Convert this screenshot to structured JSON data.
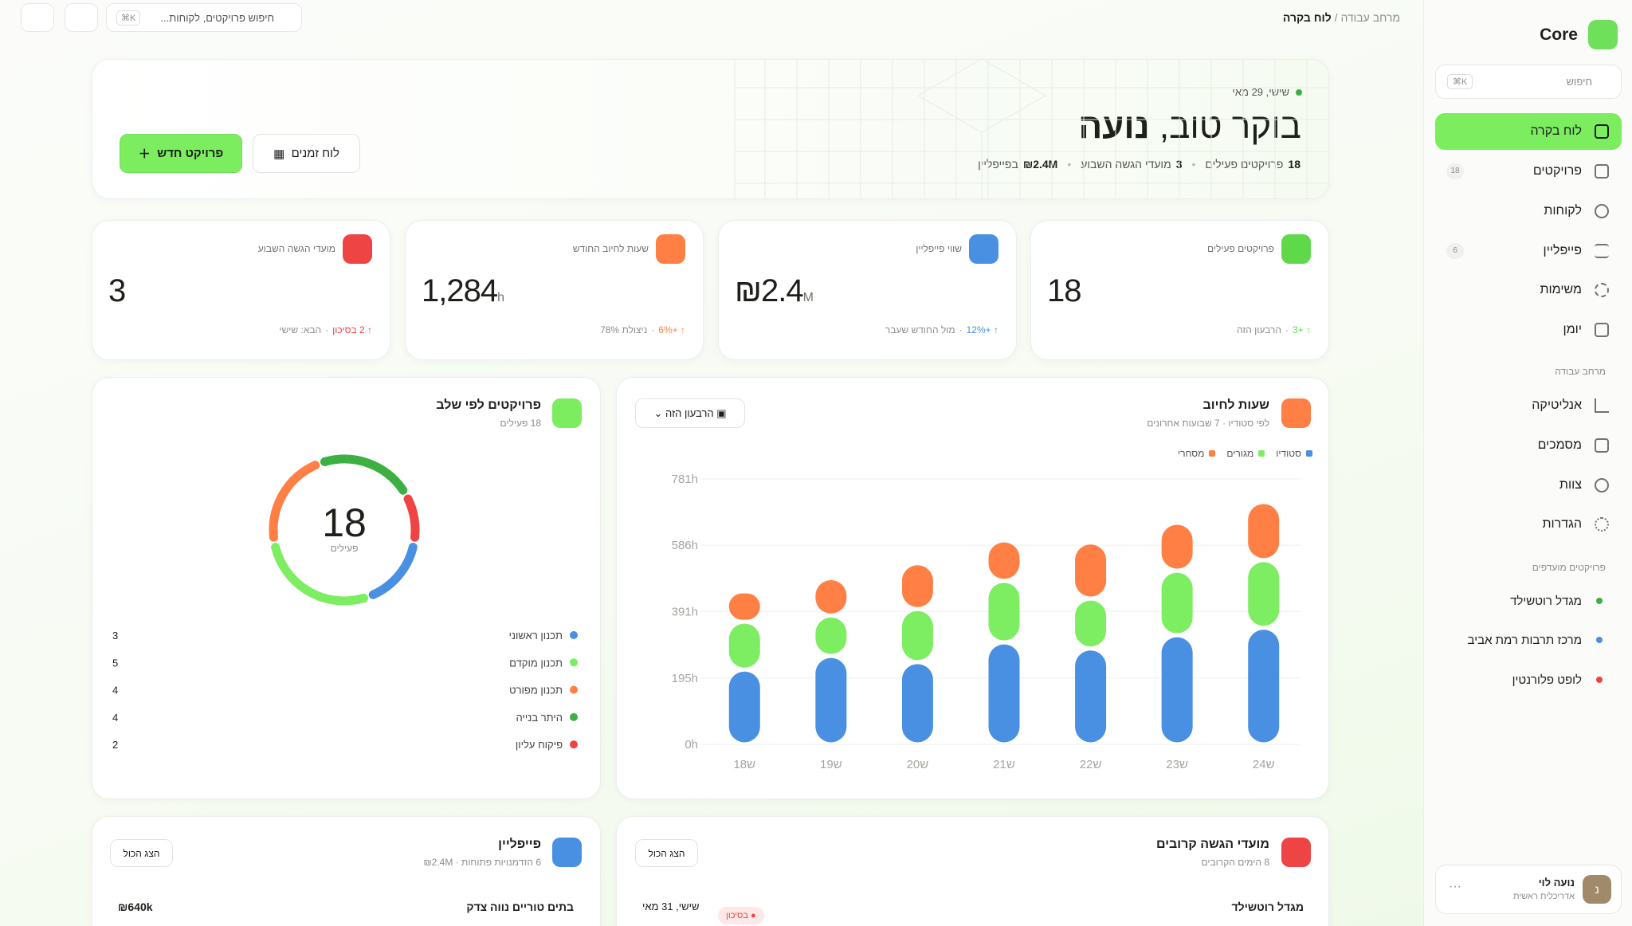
{
  "sidebar": {
    "brand": "Core",
    "search": {
      "placeholder": "חיפוש",
      "shortcut": "⌘K"
    },
    "nav": [
      {
        "label": "לוח בקרה"
      },
      {
        "label": "פרויקטים",
        "badge": "18"
      },
      {
        "label": "לקוחות"
      },
      {
        "label": "פייפליין",
        "badge": "6"
      },
      {
        "label": "משימות"
      },
      {
        "label": "יומן"
      }
    ],
    "workspace_title": "מרחב עבודה",
    "workspace": [
      "אנליטיקה",
      "מסמכים",
      "צוות",
      "הגדרות"
    ],
    "favorites_title": "פרויקטים מועדפים",
    "favorites": [
      {
        "label": "מגדל רוטשילד",
        "color": "#3cb043"
      },
      {
        "label": "מרכז תרבות רמת אביב",
        "color": "#4a90e2"
      },
      {
        "label": "לופט פלורנטין",
        "color": "#ef4444"
      }
    ],
    "user": {
      "name": "נועה לוי",
      "role": "אדריכלית ראשית",
      "initial": "נ"
    }
  },
  "topbar": {
    "breadcrumb": [
      "מרחב עבודה",
      "לוח בקרה"
    ],
    "search": {
      "placeholder": "חיפוש פרויקטים, לקוחות...",
      "shortcut": "⌘K"
    }
  },
  "hero": {
    "date": "שישי, 29 מאי",
    "greeting": "בוקר טוב,",
    "name": "נועה",
    "stats": [
      {
        "value": "18",
        "label": "פרויקטים פעילים"
      },
      {
        "value": "3",
        "label": "מועדי הגשה השבוע"
      },
      {
        "value": "₪2.4M",
        "label": "בפייפליין"
      }
    ],
    "buttons": [
      "פרויקט חדש",
      "לוח זמנים"
    ]
  },
  "kpis": [
    {
      "label": "פרויקטים פעילים",
      "value": "18",
      "unit": "",
      "change": "+3",
      "note": "הרבעון הזה",
      "color": "#5fd94a"
    },
    {
      "label": "שווי פייפליין",
      "value": "₪2.4",
      "unit": "M",
      "change": "+12%",
      "note": "מול החודש שעבר",
      "color": "#4a90e2"
    },
    {
      "label": "שעות לחיוב החודש",
      "value": "1,284",
      "unit": "h",
      "change": "+6%",
      "note": "ניצולת 78%",
      "color": "#ff7f45"
    },
    {
      "label": "מועדי הגשה השבוע",
      "value": "3",
      "unit": "",
      "change": "2 בסיכון",
      "note": "הבא: שישי",
      "color": "#ef4444"
    }
  ],
  "chart_data": [
    {
      "type": "pie",
      "title": "פרויקטים לפי שלב",
      "subtitle": "18 פעילים",
      "total": 18,
      "center_label": "פעילים",
      "categories": [
        "תכנון ראשוני",
        "תכנון מוקדם",
        "תכנון מפורט",
        "היתר בנייה",
        "פיקוח עליון"
      ],
      "values": [
        3,
        5,
        4,
        4,
        2
      ],
      "colors": [
        "#4a90e2",
        "#7ded62",
        "#ff7f45",
        "#3cb043",
        "#ef4444"
      ]
    },
    {
      "type": "bar",
      "stacked": true,
      "title": "שעות לחיוב",
      "subtitle": "לפי סטודיו · 7 שבועות אחרונים",
      "filter": "הרבעון הזה",
      "categories": [
        "ש18",
        "ש19",
        "ש20",
        "ש21",
        "ש22",
        "ש23",
        "ש24"
      ],
      "series": [
        {
          "name": "סטודיו",
          "color": "#4a90e2",
          "values": [
            220,
            260,
            242,
            300,
            282,
            321,
            343
          ]
        },
        {
          "name": "מגורים",
          "color": "#7ded62",
          "values": [
            141,
            119,
            156,
            181,
            147,
            190,
            199
          ]
        },
        {
          "name": "מסחרי",
          "color": "#ff7f45",
          "values": [
            89,
            110,
            135,
            119,
            165,
            141,
            171
          ]
        }
      ],
      "ylim": [
        0,
        781
      ],
      "yticks": [
        {
          "value": 0,
          "label": "0h"
        },
        {
          "value": 195,
          "label": "195h"
        },
        {
          "value": 391,
          "label": "391h"
        },
        {
          "value": 586,
          "label": "586h"
        },
        {
          "value": 781,
          "label": "781h"
        }
      ],
      "grid": true
    }
  ],
  "deadlines": {
    "title": "מועדי הגשה קרובים",
    "subtitle": "8 הימים הקרובים",
    "action": "הצג הכול",
    "rows": [
      {
        "project": "מגדל רוטשילד",
        "date": "שישי, 31 מאי",
        "status": "בסיכון"
      }
    ]
  },
  "pipeline": {
    "title": "פייפליין",
    "subtitle": "6 הזדמנויות פתוחות · ₪2.4M",
    "action": "הצג הכול",
    "rows": [
      {
        "project": "בתים טוריים נווה צדק",
        "amount": "₪640k"
      }
    ]
  }
}
